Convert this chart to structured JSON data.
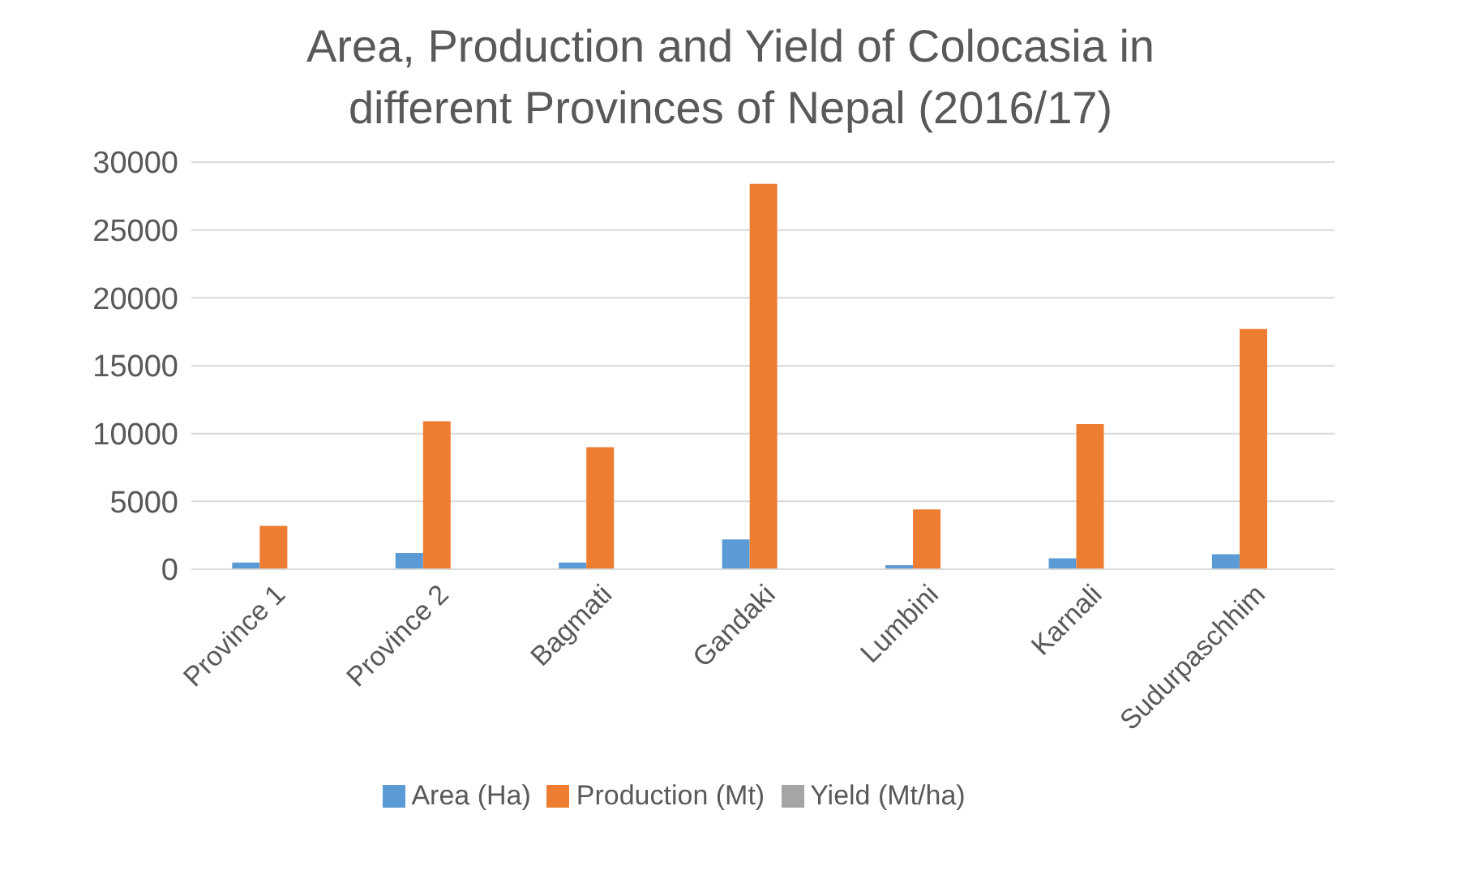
{
  "chart_data": {
    "type": "bar",
    "title": "Area, Production and Yield of Colocasia in different Provinces of Nepal (2016/17)",
    "categories": [
      "Province 1",
      "Province 2",
      "Bagmati",
      "Gandaki",
      "Lumbini",
      "Karnali",
      "Sudurpaschhim"
    ],
    "series": [
      {
        "name": "Area (Ha)",
        "color": "#5b9bd5",
        "values": [
          500,
          1200,
          500,
          2200,
          300,
          800,
          1100
        ]
      },
      {
        "name": "Production (Mt)",
        "color": "#ed7d31",
        "values": [
          3200,
          10900,
          9000,
          28400,
          4400,
          10700,
          17700
        ]
      },
      {
        "name": "Yield (Mt/ha)",
        "color": "#a5a5a5",
        "values": [
          0,
          0,
          0,
          0,
          0,
          0,
          0
        ]
      }
    ],
    "ylim": [
      0,
      30000
    ],
    "yticks": [
      0,
      5000,
      10000,
      15000,
      20000,
      25000,
      30000
    ],
    "grid": "y",
    "legend": "bottom"
  }
}
